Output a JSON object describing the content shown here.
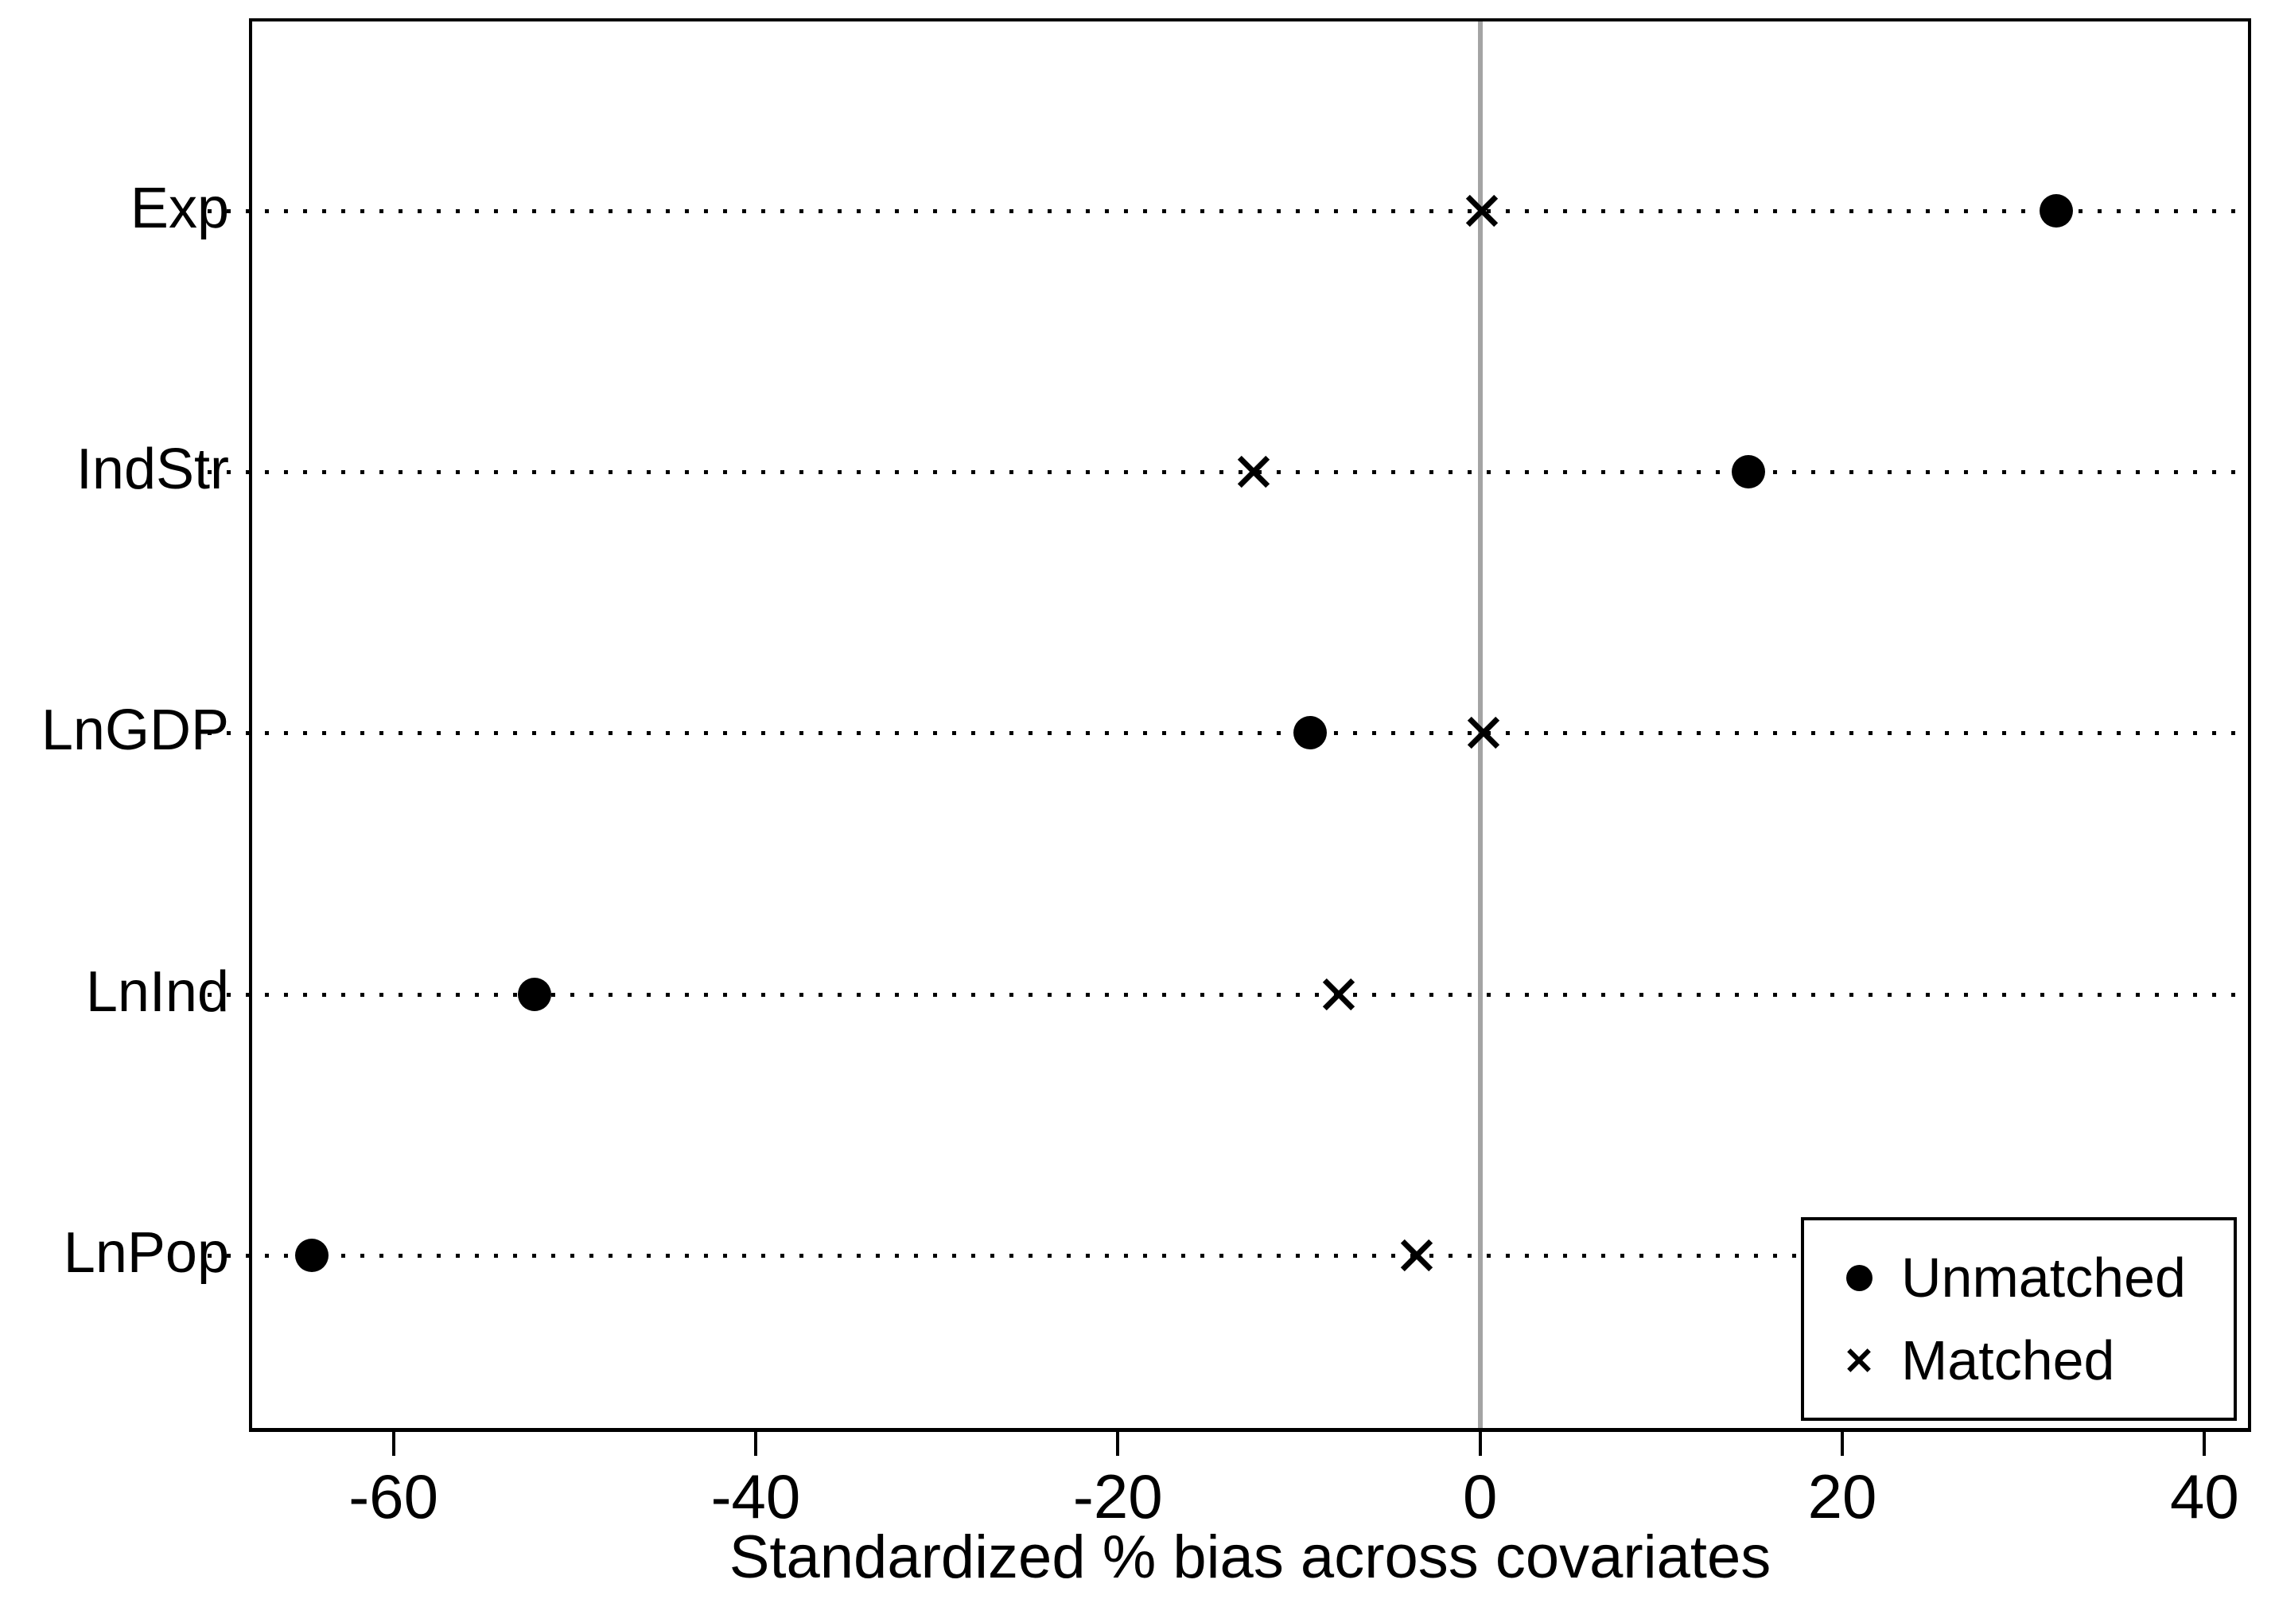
{
  "chart_data": {
    "type": "scatter",
    "title": "",
    "xlabel": "Standardized % bias across covariates",
    "ylabel": "",
    "categories": [
      "Exp",
      "IndStr",
      "LnGDP",
      "LnInd",
      "LnPop"
    ],
    "series": [
      {
        "name": "Unmatched",
        "marker": "circle",
        "values": [
          31.8,
          14.8,
          -9.4,
          -52.2,
          -64.5
        ]
      },
      {
        "name": "Matched",
        "marker": "x",
        "values": [
          0.1,
          -12.5,
          0.2,
          -7.8,
          -3.5
        ]
      }
    ],
    "x_ticks": [
      -60,
      -40,
      -20,
      0,
      20,
      40
    ],
    "xlim": [
      -67.8,
      42.4
    ],
    "zero_reference_line": 0,
    "grid": "dotted horizontal line per category",
    "legend_position": "bottom-right inside plot"
  },
  "legend": {
    "items": [
      {
        "label": "Unmatched",
        "marker": "circle-icon"
      },
      {
        "label": "Matched",
        "marker": "x-icon"
      }
    ]
  },
  "colors": {
    "background": "#ffffff",
    "frame": "#000000",
    "marker": "#000000",
    "text": "#000000",
    "zero_line": "#a4a4a4"
  }
}
